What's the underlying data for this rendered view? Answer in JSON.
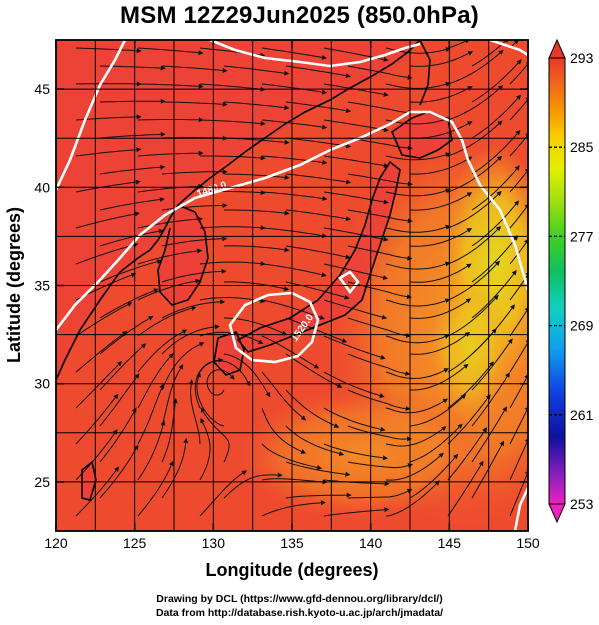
{
  "title": "MSM 12Z29Jun2025 (850.0hPa)",
  "x_axis": {
    "label": "Longitude (degrees)",
    "range": [
      120,
      150
    ],
    "ticks": [
      120,
      125,
      130,
      135,
      140,
      145,
      150
    ],
    "tick_labels": [
      "120",
      "125",
      "130",
      "135",
      "140",
      "145",
      "150"
    ]
  },
  "y_axis": {
    "label": "Latitude  (degrees)",
    "range": [
      22.5,
      47.5
    ],
    "ticks": [
      25,
      30,
      35,
      40,
      45
    ],
    "tick_labels": [
      "25",
      "30",
      "35",
      "40",
      "45"
    ]
  },
  "colorbar": {
    "range": [
      253,
      293
    ],
    "tick_labels": [
      "293",
      "285",
      "277",
      "269",
      "261",
      "253"
    ],
    "colors": [
      "#f020c0",
      "#9020c0",
      "#1010a0",
      "#1040e0",
      "#10a0f0",
      "#10d0c0",
      "#10c060",
      "#40d020",
      "#a0e010",
      "#e0f000",
      "#f8d000",
      "#f89000",
      "#f06020",
      "#e83828"
    ]
  },
  "contours": {
    "labels": [
      "1480.0",
      "1520.0"
    ],
    "color": "#ffffff"
  },
  "field_colors": {
    "base": "#ee4a2e",
    "warm_east": "#f49a24",
    "yellow_east": "#e8cc1a",
    "land": "#ec3e3a"
  },
  "credits": {
    "line1": "Drawing by DCL (https://www.gfd-dennou.org/library/dcl/)",
    "line2": "Data from http://database.rish.kyoto-u.ac.jp/arch/jmadata/"
  }
}
